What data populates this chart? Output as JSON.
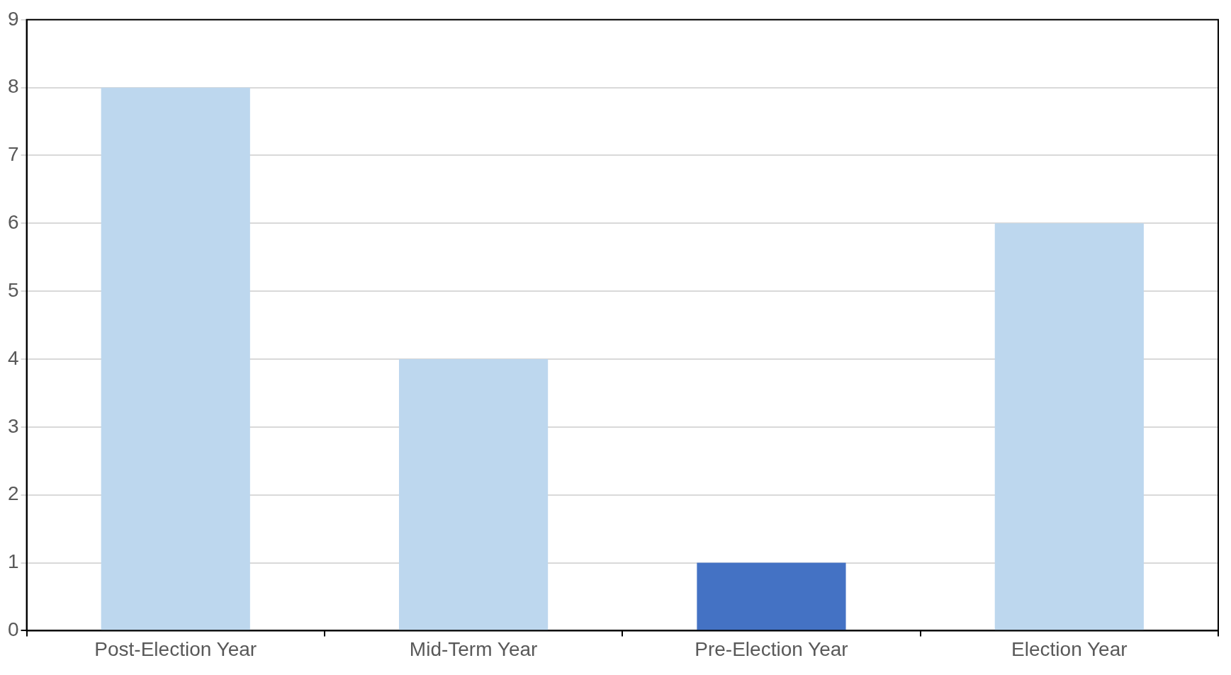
{
  "chart_data": {
    "type": "bar",
    "categories": [
      "Post-Election Year",
      "Mid-Term Year",
      "Pre-Election Year",
      "Election Year"
    ],
    "values": [
      8,
      4,
      1,
      6
    ],
    "colors": [
      "#bdd7ee",
      "#bdd7ee",
      "#4472c4",
      "#bdd7ee"
    ],
    "ylim": [
      0,
      9
    ],
    "yticks": [
      0,
      1,
      2,
      3,
      4,
      5,
      6,
      7,
      8,
      9
    ],
    "grid": "y",
    "legend": false
  }
}
